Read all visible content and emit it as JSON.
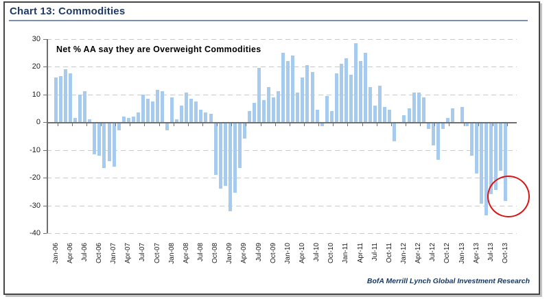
{
  "panel": {
    "title": "Chart 13: Commodities",
    "source": "BofA Merrill Lynch Global Investment Research"
  },
  "colors": {
    "title": "#1F3864",
    "title_rule": "#7A8EB0",
    "bar": "#A7CBEE",
    "grid": "#C9C9C9",
    "axis": "#6E6E6E",
    "tick_text": "#1A1A1A",
    "source_text": "#17365D",
    "highlight": "#DD1111"
  },
  "chart_data": {
    "type": "bar",
    "title": "Chart 13: Commodities",
    "annotation": "Net % AA say they are Overweight Commodities",
    "source": "BofA Merrill Lynch Global Investment Research",
    "ylim": [
      -40,
      30
    ],
    "y_ticks": [
      30,
      20,
      10,
      0,
      -10,
      -20,
      -30,
      -40
    ],
    "grid": "dashed horizontal gridlines, zero axis solid",
    "bars_per_tick": 3,
    "x_tick_labels": [
      "Jan-06",
      "Apr-06",
      "Jul-06",
      "Oct-06",
      "Jan-07",
      "Apr-07",
      "Jul-07",
      "Oct-07",
      "Jan-08",
      "Apr-08",
      "Jul-08",
      "Oct-08",
      "Jan-09",
      "Apr-09",
      "Jul-09",
      "Oct-09",
      "Jan-10",
      "Apr-10",
      "Jul-10",
      "Oct-10",
      "Jan-11",
      "Apr-11",
      "Jul-11",
      "Oct-11",
      "Jan-12",
      "Apr-12",
      "Jul-12",
      "Oct-12",
      "Jan-13",
      "Apr-13",
      "Jul-13",
      "Oct-13"
    ],
    "values": [
      16,
      16.5,
      19,
      17.5,
      1.5,
      10,
      11,
      1,
      -11,
      -11.5,
      -16,
      -13.5,
      -15.5,
      -2.5,
      2,
      1.5,
      2,
      3.5,
      10,
      8.5,
      7.5,
      11.5,
      11,
      -2.5,
      9,
      1,
      6,
      10.5,
      8.5,
      7.5,
      4.5,
      3.5,
      3,
      -18.5,
      -23.5,
      -22.5,
      -31.5,
      -25,
      -16,
      -5.5,
      4,
      7,
      19.5,
      8,
      12.5,
      9,
      11,
      25,
      22,
      24,
      10.5,
      16,
      20.5,
      18,
      4.5,
      -1,
      9.5,
      4,
      17.5,
      21,
      23,
      17,
      28.5,
      22,
      25,
      12.5,
      6,
      13,
      5.5,
      4.5,
      -6.5,
      0,
      2.5,
      5,
      10.5,
      10.5,
      9,
      -2,
      -8,
      -13,
      -2,
      1.5,
      5,
      0,
      5.5,
      -1,
      -11.5,
      -18,
      -29,
      -33,
      -25.5,
      -24,
      -17,
      -28
    ],
    "highlight_note": "red ellipse circling the Jul-13 to Oct-13 lows"
  }
}
